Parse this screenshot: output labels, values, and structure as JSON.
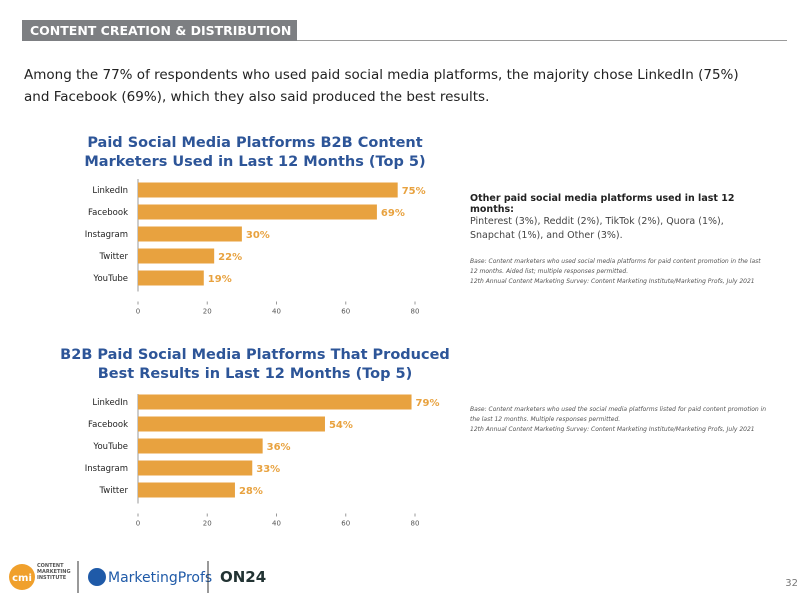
{
  "header": {
    "title": "CONTENT CREATION & DISTRIBUTION"
  },
  "intro": "Among the 77% of respondents who used paid social media platforms, the majority chose LinkedIn (75%) and Facebook (69%), which they also said produced the best results.",
  "chart_data": [
    {
      "type": "bar",
      "orientation": "horizontal",
      "title": "Paid Social Media Platforms B2B Content Marketers Used in Last 12 Months (Top 5)",
      "categories": [
        "LinkedIn",
        "Facebook",
        "Instagram",
        "Twitter",
        "YouTube"
      ],
      "values": [
        75,
        69,
        30,
        22,
        19
      ],
      "value_labels": [
        "75%",
        "69%",
        "30%",
        "22%",
        "19%"
      ],
      "color": "#e8a23f",
      "xlim": [
        0,
        80
      ],
      "xticks": [
        0,
        20,
        40,
        60,
        80
      ]
    },
    {
      "type": "bar",
      "orientation": "horizontal",
      "title": "B2B Paid Social Media Platforms That Produced Best Results in Last 12 Months (Top 5)",
      "categories": [
        "LinkedIn",
        "Facebook",
        "YouTube",
        "Instagram",
        "Twitter"
      ],
      "values": [
        79,
        54,
        36,
        33,
        28
      ],
      "value_labels": [
        "79%",
        "54%",
        "36%",
        "33%",
        "28%"
      ],
      "color": "#e8a23f",
      "xlim": [
        0,
        80
      ],
      "xticks": [
        0,
        20,
        40,
        60,
        80
      ]
    }
  ],
  "notes": [
    {
      "heading": "Other paid social media platforms used in last 12 months:",
      "text": "Pinterest (3%), Reddit (2%), TikTok (2%), Quora (1%), Snapchat (1%), and Other (3%).",
      "base": "Base: Content marketers who used social media platforms for paid content promotion in the last 12 months. Aided list; multiple responses permitted.",
      "source": "12th Annual Content Marketing Survey: Content Marketing Institute/Marketing Profs, July 2021"
    },
    {
      "base": "Base: Content marketers who used the social media platforms listed for paid content promotion in the last 12 months. Multiple responses permitted.",
      "source": "12th Annual Content Marketing Survey: Content Marketing Institute/Marketing Profs, July 2021"
    }
  ],
  "footer": {
    "logo_cmi": "CONTENT MARKETING INSTITUTE",
    "logo_cmi_mark": "cmi",
    "logo_mp": "MarketingProfs",
    "logo_on24": "ON24",
    "page_number": "32"
  }
}
